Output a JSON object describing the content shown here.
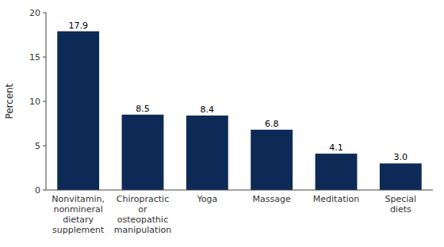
{
  "chart_data": {
    "type": "bar",
    "categories": [
      "Nonvitamin,\nnonmineral\ndietary\nsupplement",
      "Chiropractic\nor\nosteopathic\nmanipulation",
      "Yoga",
      "Massage",
      "Meditation",
      "Special\ndiets"
    ],
    "values": [
      17.9,
      8.5,
      8.4,
      6.8,
      4.1,
      3.0
    ],
    "value_labels": [
      "17.9",
      "8.5",
      "8.4",
      "6.8",
      "4.1",
      "3.0"
    ],
    "data_labels": true,
    "color": "#0d2a57",
    "ylabel": "Percent",
    "ylim": [
      0,
      20
    ],
    "yticks": [
      0,
      5,
      10,
      15,
      20
    ],
    "grid": false
  }
}
